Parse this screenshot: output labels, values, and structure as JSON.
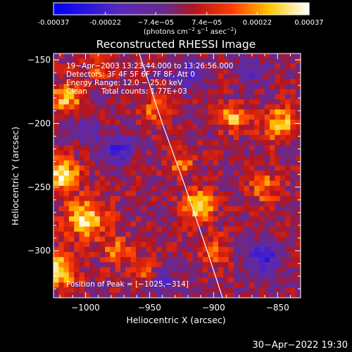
{
  "chart_data": {
    "type": "heatmap",
    "title": "Reconstructed RHESSI Image",
    "xlabel": "Heliocentric X (arcsec)",
    "ylabel": "Heliocentric Y (arcsec)",
    "xlim": [
      -1025,
      -832
    ],
    "ylim": [
      -337,
      -145
    ],
    "x_ticks": [
      -1000,
      -950,
      -900,
      -850
    ],
    "y_ticks": [
      -150,
      -200,
      -250,
      -300
    ],
    "colormap": "blue-purple-red-orange-yellow-white",
    "colorbar": {
      "ticks": [
        "-0.00037",
        "-0.00022",
        "−7.4e−05",
        "7.4e−05",
        "0.00022",
        "0.00037"
      ],
      "tick_values": [
        -0.00037,
        -0.00022,
        -7.4e-05,
        7.4e-05,
        0.00022,
        0.00037
      ],
      "range": [
        -0.00037,
        0.00037
      ],
      "unit_main": "(photons cm",
      "unit_sup1": "−2",
      "unit_mid": " s",
      "unit_sup2": "−1",
      "unit_mid2": " asec",
      "unit_sup3": "−2",
      "unit_end": ")"
    },
    "annotations": [
      "19−Apr−2003 13:23:44.000 to 13:26:56.000",
      "Detectors: 3F 4F 5F 6F 7F 8F, Att 0",
      "Energy Range: 12.0 − 25.0 keV",
      "Clean      Total counts: 1.77E+03",
      "Position of Peak = [−1025,−314]"
    ],
    "limb_curve": [
      [
        -958,
        -145
      ],
      [
        -940,
        -200
      ],
      [
        -922,
        -250
      ],
      [
        -905,
        -300
      ],
      [
        -893,
        -337
      ]
    ],
    "intensity_blobs": [
      {
        "x": -912,
        "y": -265,
        "amp": 0.00037,
        "sigma": 8
      },
      {
        "x": -925,
        "y": -232,
        "amp": 0.00022,
        "sigma": 6
      },
      {
        "x": -1018,
        "y": -240,
        "amp": 0.00033,
        "sigma": 9
      },
      {
        "x": -1000,
        "y": -275,
        "amp": 0.0003,
        "sigma": 11
      },
      {
        "x": -1015,
        "y": -180,
        "amp": 0.00028,
        "sigma": 8
      },
      {
        "x": -1020,
        "y": -315,
        "amp": 0.00032,
        "sigma": 9
      },
      {
        "x": -975,
        "y": -300,
        "amp": 0.0002,
        "sigma": 8
      },
      {
        "x": -955,
        "y": -315,
        "amp": 0.00018,
        "sigma": 7
      },
      {
        "x": -945,
        "y": -190,
        "amp": 0.00018,
        "sigma": 7
      },
      {
        "x": -885,
        "y": -195,
        "amp": 0.00024,
        "sigma": 8
      },
      {
        "x": -848,
        "y": -200,
        "amp": 0.00026,
        "sigma": 10
      },
      {
        "x": -860,
        "y": -250,
        "amp": 0.00018,
        "sigma": 9
      },
      {
        "x": -898,
        "y": -300,
        "amp": 0.00016,
        "sigma": 8
      },
      {
        "x": -990,
        "y": -155,
        "amp": 0.00017,
        "sigma": 7
      },
      {
        "x": -975,
        "y": -220,
        "amp": -0.0002,
        "sigma": 9
      },
      {
        "x": -920,
        "y": -160,
        "amp": -0.00018,
        "sigma": 9
      },
      {
        "x": -860,
        "y": -305,
        "amp": -0.00022,
        "sigma": 10
      },
      {
        "x": -1000,
        "y": -205,
        "amp": -0.00016,
        "sigma": 7
      },
      {
        "x": -940,
        "y": -325,
        "amp": -0.00015,
        "sigma": 8
      },
      {
        "x": -870,
        "y": -160,
        "amp": -0.00014,
        "sigma": 8
      }
    ]
  },
  "footer": {
    "timestamp": "30−Apr−2022 19:30"
  }
}
